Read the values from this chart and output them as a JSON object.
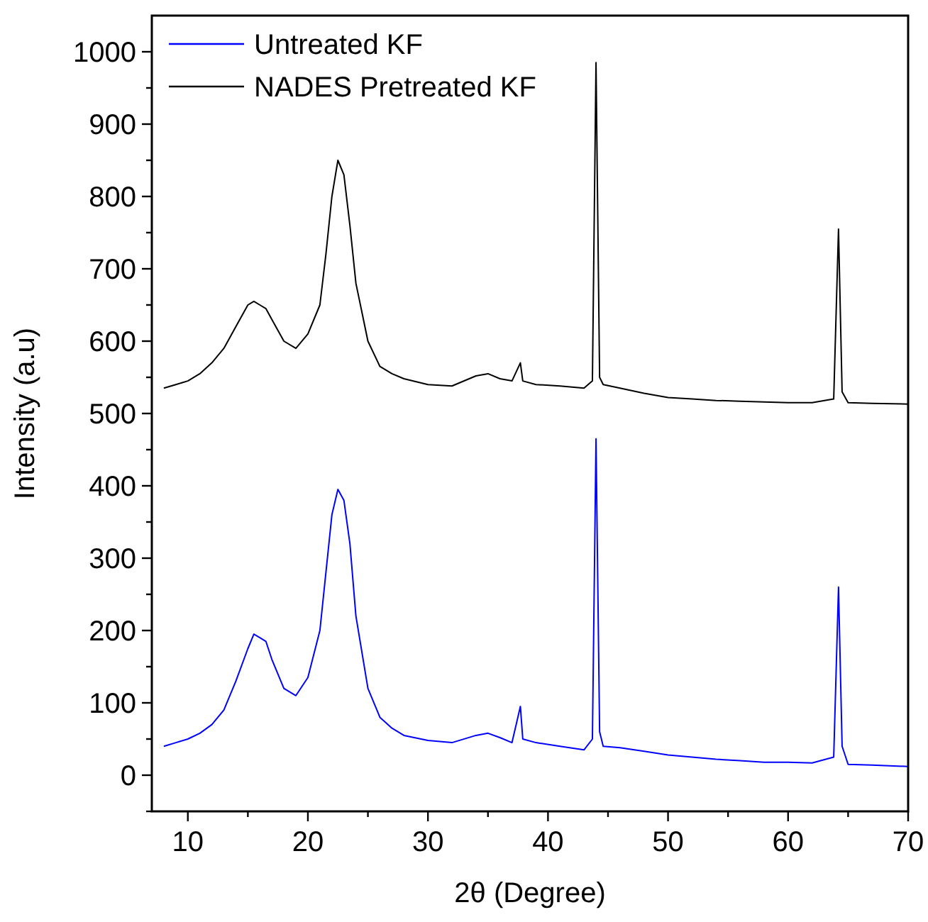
{
  "chart_data": {
    "type": "line",
    "xlabel": "2θ (Degree)",
    "ylabel": "Intensity (a.u)",
    "xlim": [
      7,
      70
    ],
    "ylim": [
      -50,
      1050
    ],
    "xticks": [
      10,
      {
        "value": 15,
        "label": null
      },
      20,
      {
        "value": 25,
        "label": null
      },
      30,
      {
        "value": 35,
        "label": null
      },
      40,
      {
        "value": 45,
        "label": null
      },
      50,
      {
        "value": 55,
        "label": null
      },
      60,
      {
        "value": 65,
        "label": null
      },
      70
    ],
    "yticks": [
      {
        "value": -50,
        "label": null
      },
      0,
      {
        "value": 50,
        "label": null
      },
      100,
      {
        "value": 150,
        "label": null
      },
      200,
      {
        "value": 250,
        "label": null
      },
      300,
      {
        "value": 350,
        "label": null
      },
      400,
      {
        "value": 450,
        "label": null
      },
      500,
      {
        "value": 550,
        "label": null
      },
      600,
      {
        "value": 650,
        "label": null
      },
      700,
      {
        "value": 750,
        "label": null
      },
      800,
      {
        "value": 850,
        "label": null
      },
      900,
      {
        "value": 950,
        "label": null
      },
      1000
    ],
    "legend": "top left",
    "grid": false,
    "marker": "none",
    "line_style": "solid",
    "x": [
      8,
      9,
      10,
      11,
      12,
      13,
      14,
      15,
      15.5,
      16,
      16.5,
      17,
      18,
      19,
      20,
      21,
      21.5,
      22,
      22.5,
      23,
      23.5,
      24,
      25,
      26,
      27,
      28,
      30,
      32,
      34,
      35,
      36,
      37,
      37.7,
      37.9,
      39,
      41,
      43,
      43.7,
      44,
      44.3,
      44.6,
      46,
      48,
      50,
      52,
      54,
      56,
      58,
      60,
      62,
      63.8,
      64.2,
      64.5,
      65,
      67,
      70
    ],
    "series": [
      {
        "name": "Untreated KF",
        "color": "#0000ff",
        "values": [
          40,
          45,
          50,
          58,
          70,
          90,
          130,
          175,
          195,
          190,
          185,
          160,
          120,
          110,
          135,
          200,
          280,
          360,
          395,
          380,
          320,
          220,
          120,
          80,
          65,
          55,
          48,
          45,
          55,
          58,
          52,
          45,
          95,
          50,
          45,
          40,
          35,
          50,
          465,
          60,
          40,
          38,
          33,
          28,
          25,
          22,
          20,
          18,
          18,
          17,
          25,
          260,
          40,
          15,
          14,
          12
        ]
      },
      {
        "name": "NADES Pretreated KF",
        "color": "#000000",
        "values": [
          535,
          540,
          545,
          555,
          570,
          590,
          620,
          650,
          655,
          650,
          645,
          630,
          600,
          590,
          610,
          650,
          720,
          800,
          850,
          830,
          760,
          680,
          600,
          565,
          555,
          548,
          540,
          538,
          552,
          555,
          548,
          545,
          570,
          545,
          540,
          538,
          535,
          545,
          985,
          550,
          540,
          535,
          528,
          522,
          520,
          518,
          517,
          516,
          515,
          515,
          520,
          755,
          530,
          515,
          514,
          513
        ]
      }
    ]
  }
}
